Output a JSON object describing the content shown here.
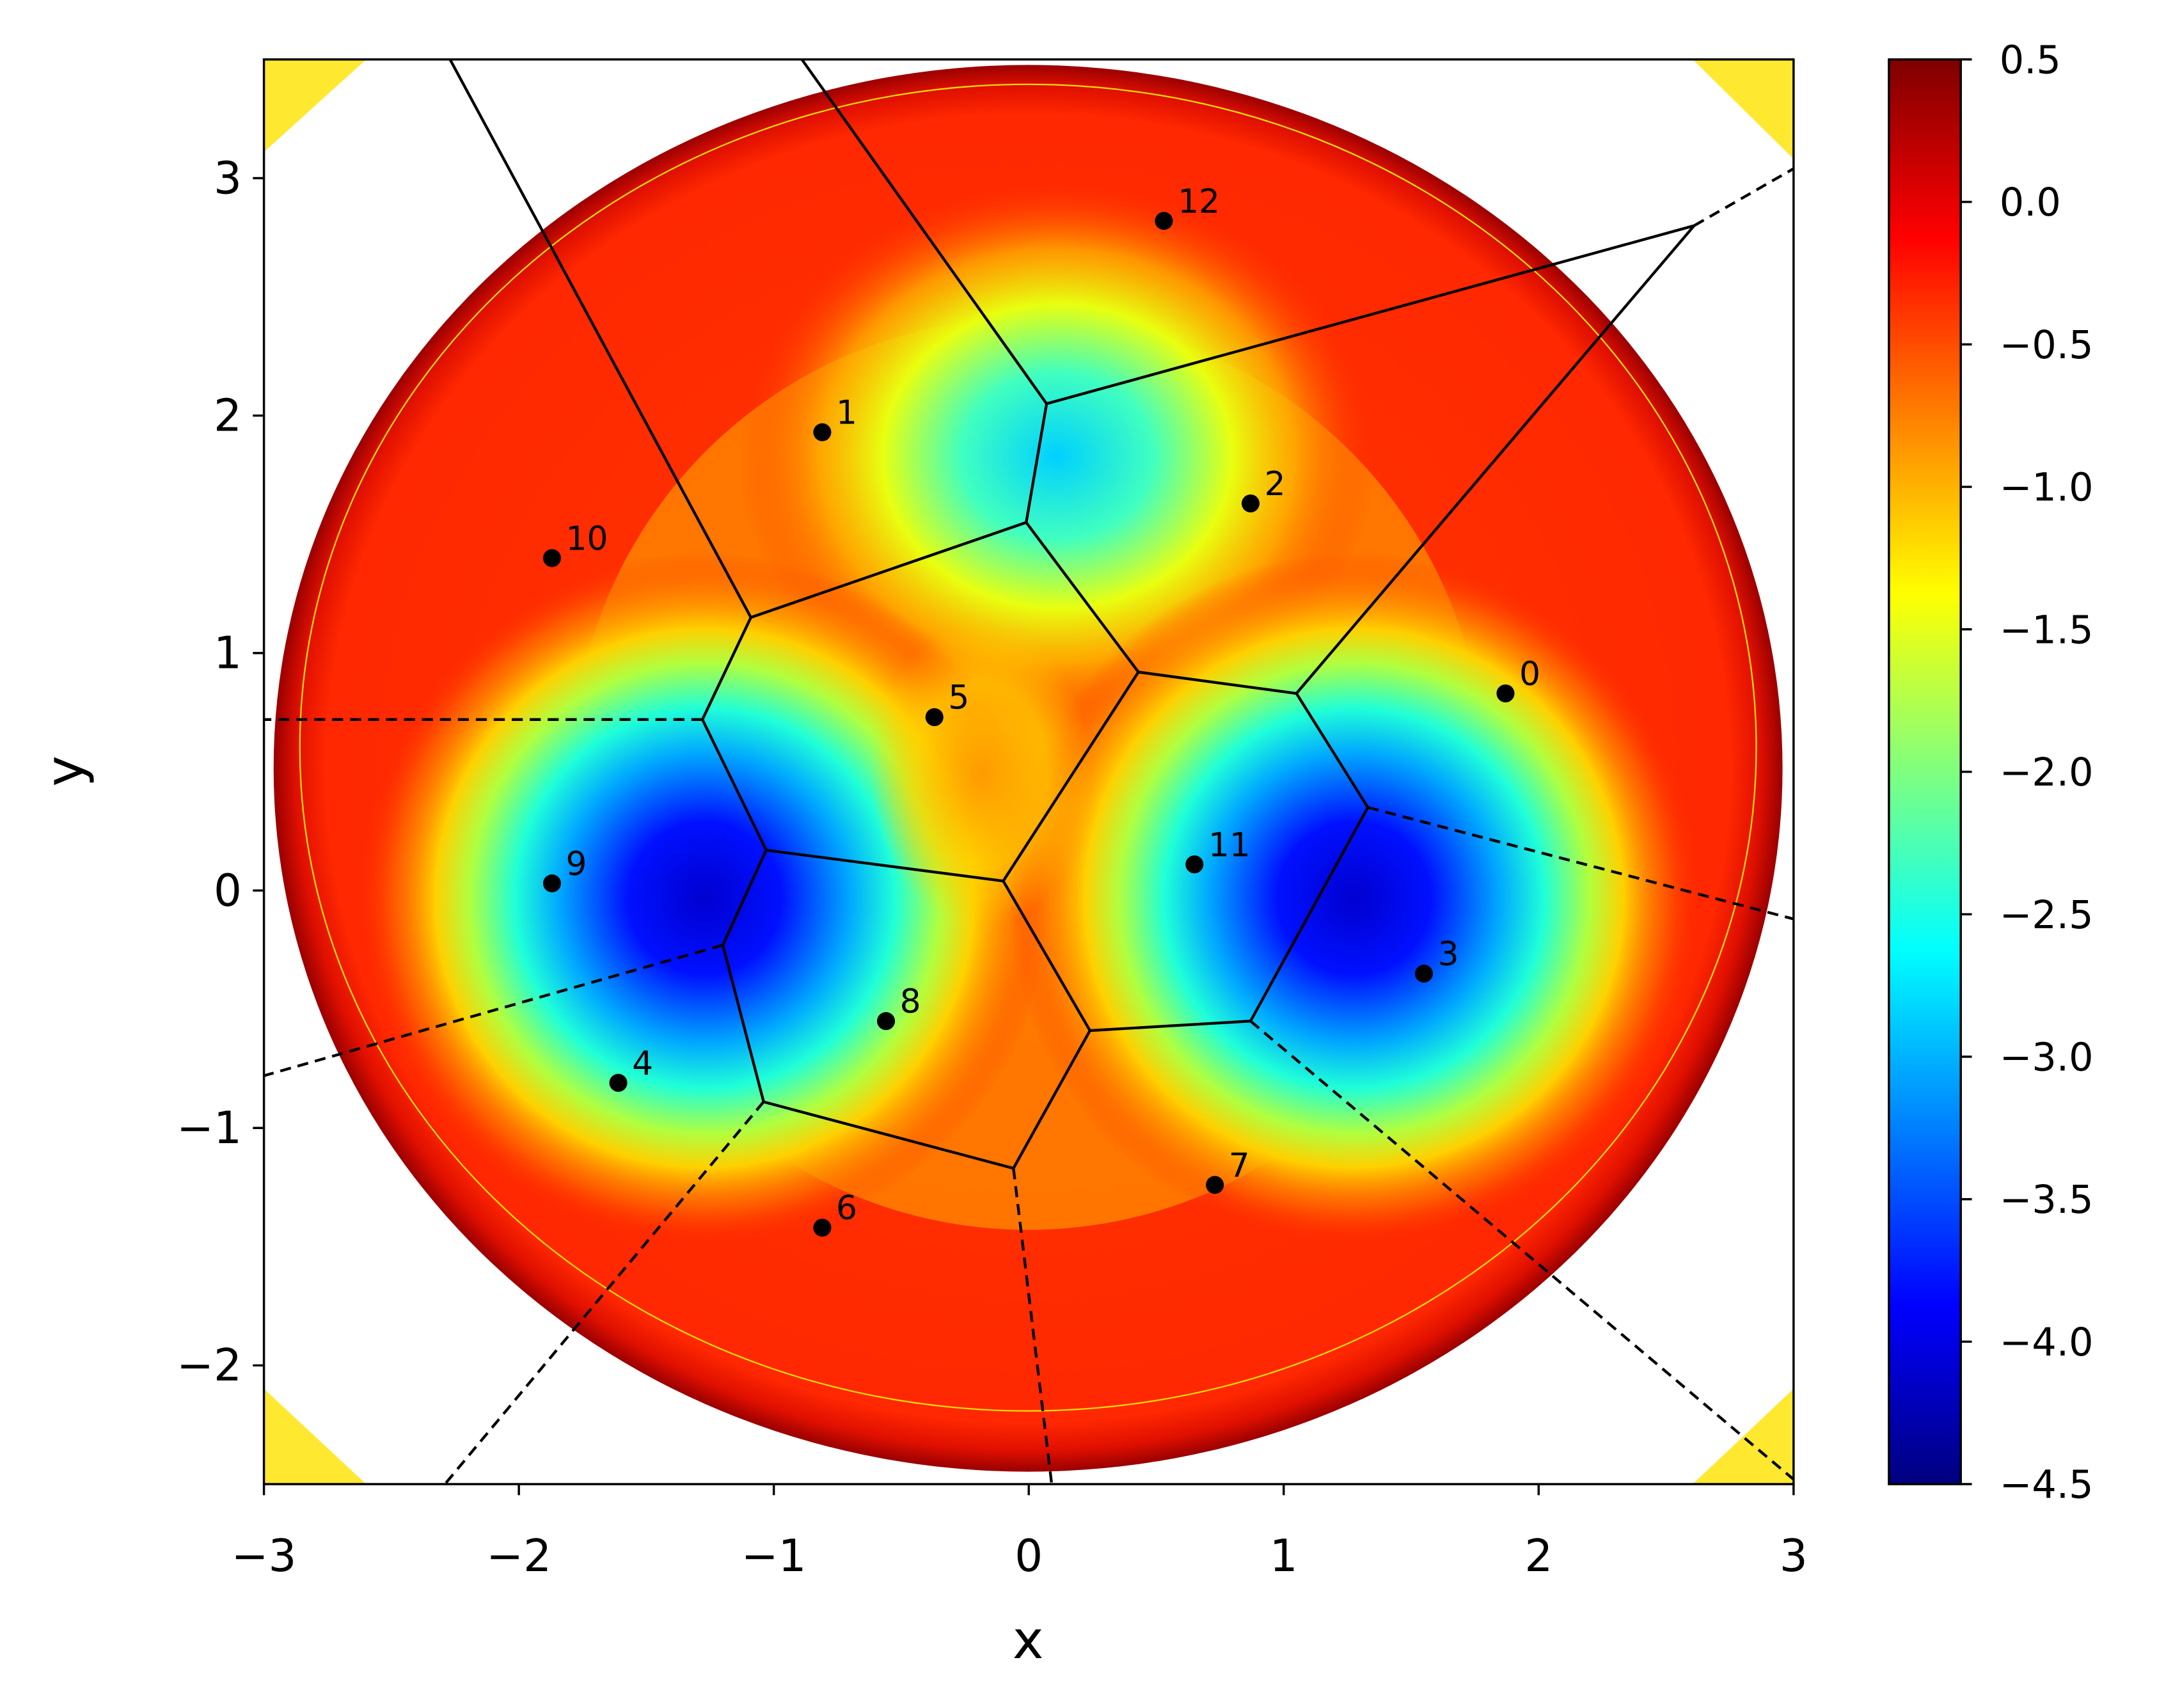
{
  "chart_data": {
    "type": "scatter",
    "x_label": "x",
    "y_label": "y",
    "xlim": [
      -3,
      3
    ],
    "ylim": [
      -2.5,
      3.5
    ],
    "xticks": [
      {
        "value": -3,
        "label": "−3"
      },
      {
        "value": -2,
        "label": "−2"
      },
      {
        "value": -1,
        "label": "−1"
      },
      0,
      1,
      2,
      3
    ],
    "yticks": [
      {
        "value": -2,
        "label": "−2"
      },
      {
        "value": -1,
        "label": "−1"
      },
      0,
      1,
      2,
      3
    ],
    "series": [
      {
        "color": "#000000",
        "x": [
          1.87,
          -0.81,
          0.87,
          1.55,
          -1.61,
          -0.37,
          -0.81,
          0.73,
          -0.56,
          -1.87,
          -1.87,
          0.65,
          0.53
        ],
        "values": [
          0.83,
          1.93,
          1.63,
          -0.35,
          -0.81,
          0.73,
          -1.42,
          -1.24,
          -0.55,
          0.03,
          1.4,
          0.11,
          2.82
        ],
        "labels": [
          "0",
          "1",
          "2",
          "3",
          "4",
          "5",
          "6",
          "7",
          "8",
          "9",
          "10",
          "11",
          "12"
        ]
      }
    ],
    "ridges": [
      {
        "style": "solid",
        "points": [
          [
            0.07,
            2.05
          ],
          [
            -0.01,
            1.55
          ]
        ]
      },
      {
        "style": "solid",
        "points": [
          [
            -0.01,
            1.55
          ],
          [
            -1.09,
            1.15
          ]
        ]
      },
      {
        "style": "solid",
        "points": [
          [
            -1.09,
            1.15
          ],
          [
            -1.28,
            0.72
          ]
        ]
      },
      {
        "style": "solid",
        "points": [
          [
            -1.28,
            0.72
          ],
          [
            -1.03,
            0.17
          ]
        ]
      },
      {
        "style": "solid",
        "points": [
          [
            -1.03,
            0.17
          ],
          [
            -1.2,
            -0.23
          ]
        ]
      },
      {
        "style": "solid",
        "points": [
          [
            -1.2,
            -0.23
          ],
          [
            -1.04,
            -0.89
          ]
        ]
      },
      {
        "style": "solid",
        "points": [
          [
            -1.04,
            -0.89
          ],
          [
            -0.06,
            -1.17
          ]
        ]
      },
      {
        "style": "solid",
        "points": [
          [
            -0.06,
            -1.17
          ],
          [
            0.24,
            -0.59
          ]
        ]
      },
      {
        "style": "solid",
        "points": [
          [
            0.24,
            -0.59
          ],
          [
            -0.1,
            0.04
          ]
        ]
      },
      {
        "style": "solid",
        "points": [
          [
            -0.1,
            0.04
          ],
          [
            -1.03,
            0.17
          ]
        ]
      },
      {
        "style": "solid",
        "points": [
          [
            -0.1,
            0.04
          ],
          [
            0.43,
            0.92
          ]
        ]
      },
      {
        "style": "solid",
        "points": [
          [
            0.43,
            0.92
          ],
          [
            -0.01,
            1.55
          ]
        ]
      },
      {
        "style": "solid",
        "points": [
          [
            0.43,
            0.92
          ],
          [
            1.05,
            0.83
          ]
        ]
      },
      {
        "style": "solid",
        "points": [
          [
            1.05,
            0.83
          ],
          [
            1.33,
            0.35
          ]
        ]
      },
      {
        "style": "solid",
        "points": [
          [
            1.33,
            0.35
          ],
          [
            0.87,
            -0.55
          ]
        ]
      },
      {
        "style": "solid",
        "points": [
          [
            0.87,
            -0.55
          ],
          [
            0.24,
            -0.59
          ]
        ]
      },
      {
        "style": "solid",
        "points": [
          [
            0.07,
            2.05
          ],
          [
            -0.89,
            3.5
          ]
        ]
      },
      {
        "style": "solid",
        "points": [
          [
            -1.09,
            1.15
          ],
          [
            -2.27,
            3.5
          ]
        ]
      },
      {
        "style": "solid",
        "points": [
          [
            0.07,
            2.05
          ],
          [
            2.61,
            2.8
          ]
        ]
      },
      {
        "style": "solid",
        "points": [
          [
            1.05,
            0.83
          ],
          [
            2.61,
            2.8
          ]
        ]
      },
      {
        "style": "dashed",
        "points": [
          [
            2.61,
            2.8
          ],
          [
            3,
            3.04
          ]
        ]
      },
      {
        "style": "dashed",
        "points": [
          [
            -1.28,
            0.72
          ],
          [
            -3,
            0.72
          ]
        ]
      },
      {
        "style": "dashed",
        "points": [
          [
            -1.2,
            -0.23
          ],
          [
            -3,
            -0.78
          ]
        ]
      },
      {
        "style": "dashed",
        "points": [
          [
            -1.04,
            -0.89
          ],
          [
            -2.29,
            -2.5
          ]
        ]
      },
      {
        "style": "dashed",
        "points": [
          [
            -0.06,
            -1.17
          ],
          [
            0.09,
            -2.5
          ]
        ]
      },
      {
        "style": "dashed",
        "points": [
          [
            0.87,
            -0.55
          ],
          [
            3,
            -2.48
          ]
        ]
      },
      {
        "style": "dashed",
        "points": [
          [
            1.33,
            0.35
          ],
          [
            3,
            -0.12
          ]
        ]
      }
    ],
    "colorbar": {
      "colormap": "jet",
      "lim": [
        -4.5,
        0.5
      ],
      "ticks": [
        0.5,
        {
          "value": 0,
          "label": "0.0"
        },
        {
          "value": -0.5,
          "label": "−0.5"
        },
        {
          "value": -1,
          "label": "−1.0"
        },
        {
          "value": -1.5,
          "label": "−1.5"
        },
        {
          "value": -2,
          "label": "−2.0"
        },
        {
          "value": -2.5,
          "label": "−2.5"
        },
        {
          "value": -3,
          "label": "−3.0"
        },
        {
          "value": -3.5,
          "label": "−3.5"
        },
        {
          "value": -4,
          "label": "−4.0"
        },
        {
          "value": -4.5,
          "label": "−4.5"
        }
      ]
    }
  }
}
